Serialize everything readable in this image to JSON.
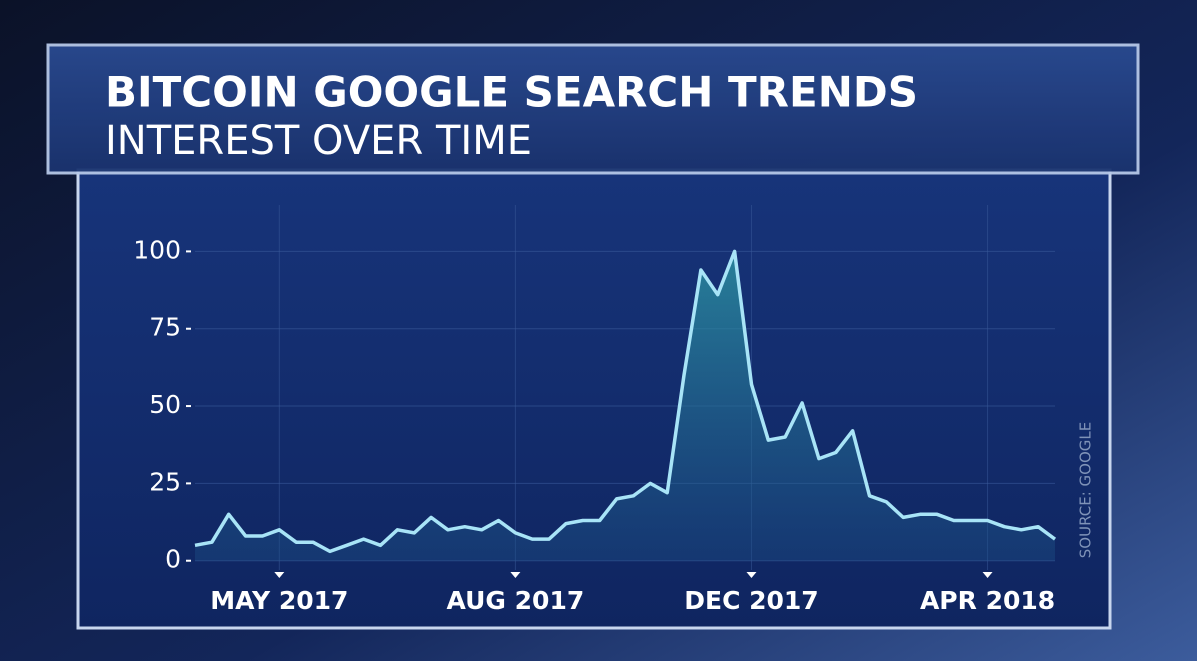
{
  "chart_data": {
    "type": "line",
    "title": "BITCOIN GOOGLE SEARCH TRENDS",
    "subtitle": "INTEREST OVER TIME",
    "source": "SOURCE: GOOGLE",
    "categories": [
      null,
      null,
      null,
      null,
      null,
      "MAY 2017",
      null,
      null,
      null,
      null,
      null,
      null,
      null,
      null,
      null,
      null,
      null,
      null,
      null,
      "AUG 2017",
      null,
      null,
      null,
      null,
      null,
      null,
      null,
      null,
      null,
      null,
      null,
      null,
      null,
      "DEC 2017",
      null,
      null,
      null,
      null,
      null,
      null,
      null,
      null,
      null,
      null,
      null,
      null,
      null,
      "APR 2018",
      null,
      null,
      null,
      null
    ],
    "values": [
      5,
      6,
      15,
      8,
      8,
      10,
      6,
      6,
      3,
      5,
      7,
      5,
      10,
      9,
      14,
      10,
      11,
      10,
      13,
      9,
      7,
      7,
      12,
      13,
      13,
      20,
      21,
      25,
      22,
      60,
      94,
      86,
      100,
      57,
      39,
      40,
      51,
      33,
      35,
      42,
      21,
      19,
      14,
      15,
      15,
      13,
      13,
      13,
      11,
      10,
      11,
      7
    ],
    "color": "#a8e4f7",
    "ylim": [
      -3,
      115
    ],
    "yticks": [
      0,
      25,
      50,
      75,
      100
    ],
    "grid": true
  }
}
